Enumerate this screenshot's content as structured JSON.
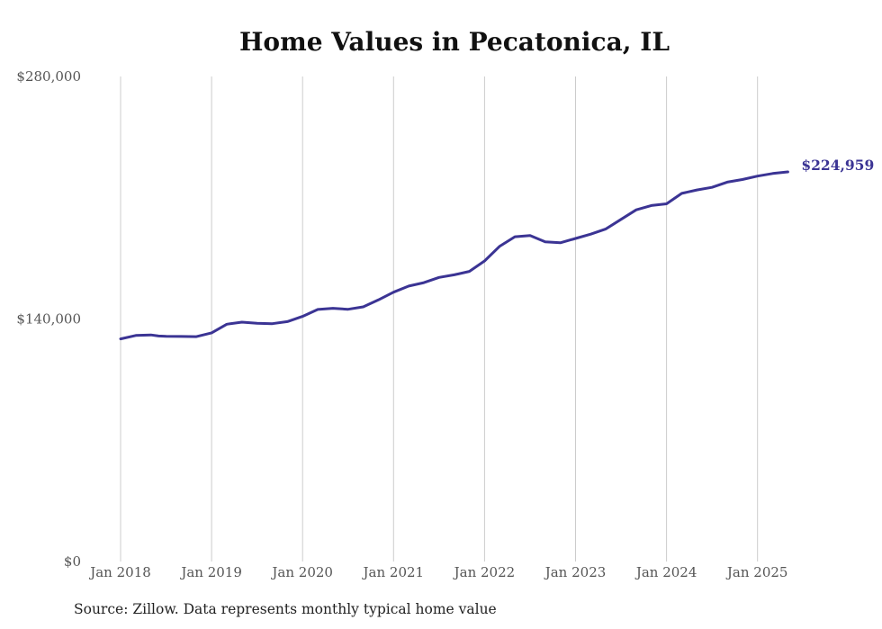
{
  "chart_data": {
    "type": "line",
    "title": "Home Values in Pecatonica, IL",
    "xlabel": "",
    "ylabel": "",
    "ylim": [
      0,
      280000
    ],
    "y_ticks": [
      {
        "value": 0,
        "label": "$0"
      },
      {
        "value": 140000,
        "label": "$140,000"
      },
      {
        "value": 280000,
        "label": "$280,000"
      }
    ],
    "x_ticks": [
      {
        "value": 2018.0,
        "label": "Jan 2018"
      },
      {
        "value": 2019.0,
        "label": "Jan 2019"
      },
      {
        "value": 2020.0,
        "label": "Jan 2020"
      },
      {
        "value": 2021.0,
        "label": "Jan 2021"
      },
      {
        "value": 2022.0,
        "label": "Jan 2022"
      },
      {
        "value": 2023.0,
        "label": "Jan 2023"
      },
      {
        "value": 2024.0,
        "label": "Jan 2024"
      },
      {
        "value": 2025.0,
        "label": "Jan 2025"
      }
    ],
    "grid": {
      "vertical": true,
      "horizontal": false
    },
    "line_color": "#3b3494",
    "grid_color": "#cccccc",
    "end_label": "$224,959",
    "source_note": "Source: Zillow. Data represents monthly typical home value",
    "series": [
      {
        "points": [
          [
            2018.0,
            128500
          ],
          [
            2018.167,
            130500
          ],
          [
            2018.333,
            130800
          ],
          [
            2018.417,
            130200
          ],
          [
            2018.5,
            130000
          ],
          [
            2018.667,
            129900
          ],
          [
            2018.833,
            129800
          ],
          [
            2019.0,
            132000
          ],
          [
            2019.167,
            137000
          ],
          [
            2019.333,
            138200
          ],
          [
            2019.5,
            137500
          ],
          [
            2019.667,
            137300
          ],
          [
            2019.833,
            138500
          ],
          [
            2020.0,
            141500
          ],
          [
            2020.167,
            145500
          ],
          [
            2020.333,
            146200
          ],
          [
            2020.5,
            145600
          ],
          [
            2020.667,
            147000
          ],
          [
            2020.833,
            151000
          ],
          [
            2021.0,
            155500
          ],
          [
            2021.167,
            159000
          ],
          [
            2021.333,
            161000
          ],
          [
            2021.5,
            164000
          ],
          [
            2021.667,
            165500
          ],
          [
            2021.833,
            167500
          ],
          [
            2022.0,
            173500
          ],
          [
            2022.167,
            182000
          ],
          [
            2022.333,
            187500
          ],
          [
            2022.5,
            188200
          ],
          [
            2022.667,
            184500
          ],
          [
            2022.833,
            184000
          ],
          [
            2023.0,
            186500
          ],
          [
            2023.167,
            189000
          ],
          [
            2023.333,
            192000
          ],
          [
            2023.5,
            197500
          ],
          [
            2023.667,
            203000
          ],
          [
            2023.833,
            205500
          ],
          [
            2024.0,
            206500
          ],
          [
            2024.167,
            212500
          ],
          [
            2024.333,
            214500
          ],
          [
            2024.5,
            216000
          ],
          [
            2024.667,
            219000
          ],
          [
            2024.833,
            220500
          ],
          [
            2025.0,
            222500
          ],
          [
            2025.167,
            224000
          ],
          [
            2025.333,
            224959
          ]
        ]
      }
    ]
  }
}
